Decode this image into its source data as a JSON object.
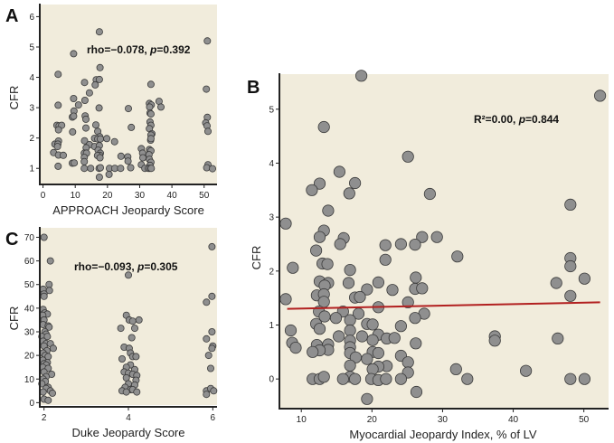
{
  "chart_data": [
    {
      "id": "A",
      "type": "scatter",
      "panel_label": "A",
      "xlabel": "APPROACH Jeopardy Score",
      "ylabel": "CFR",
      "xlim": [
        -1,
        54
      ],
      "ylim": [
        0.5,
        6.4
      ],
      "xticks": [
        0,
        10,
        20,
        30,
        40,
        50
      ],
      "yticks": [
        1,
        2,
        3,
        4,
        5,
        6
      ],
      "annotation": {
        "prefix": "rho=−0.078, ",
        "p_label": "p",
        "suffix": "=0.392"
      },
      "grid": false,
      "points": [
        [
          17.5,
          5.5
        ],
        [
          9.5,
          4.78
        ],
        [
          51,
          5.2
        ],
        [
          4.7,
          4.1
        ],
        [
          17.7,
          4.32
        ],
        [
          16.5,
          3.92
        ],
        [
          17.5,
          3.93
        ],
        [
          12.9,
          3.83
        ],
        [
          16.2,
          3.75
        ],
        [
          33.5,
          3.77
        ],
        [
          50.7,
          3.61
        ],
        [
          14.4,
          3.49
        ],
        [
          9.5,
          3.3
        ],
        [
          4.7,
          3.08
        ],
        [
          11,
          3.09
        ],
        [
          13,
          3.24
        ],
        [
          17.4,
          2.99
        ],
        [
          26.5,
          2.97
        ],
        [
          36,
          3.21
        ],
        [
          36.6,
          3.02
        ],
        [
          9.6,
          2.89
        ],
        [
          9.1,
          2.69
        ],
        [
          9.5,
          2.72
        ],
        [
          13.1,
          2.73
        ],
        [
          13.3,
          2.62
        ],
        [
          33,
          3.14
        ],
        [
          33.6,
          3.09
        ],
        [
          33.1,
          3.02
        ],
        [
          33.2,
          2.82
        ],
        [
          33.5,
          2.79
        ],
        [
          51,
          2.68
        ],
        [
          4.3,
          2.42
        ],
        [
          5,
          2.4
        ],
        [
          5.8,
          2.42
        ],
        [
          4.8,
          2.27
        ],
        [
          9.2,
          2.2
        ],
        [
          13.3,
          2.33
        ],
        [
          16.4,
          2.43
        ],
        [
          17,
          2.22
        ],
        [
          27.4,
          2.35
        ],
        [
          33.2,
          2.53
        ],
        [
          33.5,
          2.42
        ],
        [
          33,
          2.31
        ],
        [
          33.8,
          2.14
        ],
        [
          33.5,
          2.1
        ],
        [
          50.5,
          2.5
        ],
        [
          50.9,
          2.4
        ],
        [
          51.2,
          2.22
        ],
        [
          3.7,
          1.8
        ],
        [
          4.8,
          1.9
        ],
        [
          4.6,
          1.8
        ],
        [
          4.5,
          1.72
        ],
        [
          16,
          1.99
        ],
        [
          17.6,
          2.04
        ],
        [
          17,
          1.97
        ],
        [
          17.8,
          1.97
        ],
        [
          19.8,
          1.98
        ],
        [
          22.2,
          1.88
        ],
        [
          33.4,
          1.93
        ],
        [
          33.5,
          1.98
        ],
        [
          12.9,
          1.91
        ],
        [
          14.4,
          1.78
        ],
        [
          13.4,
          1.68
        ],
        [
          16,
          1.72
        ],
        [
          17.5,
          1.75
        ],
        [
          17.1,
          1.6
        ],
        [
          17.8,
          1.5
        ],
        [
          17.6,
          1.43
        ],
        [
          16.9,
          1.42
        ],
        [
          30.5,
          1.65
        ],
        [
          30.9,
          1.5
        ],
        [
          31,
          1.35
        ],
        [
          33,
          1.62
        ],
        [
          33.5,
          1.58
        ],
        [
          32.9,
          1.45
        ],
        [
          3.3,
          1.52
        ],
        [
          4.8,
          1.44
        ],
        [
          6.3,
          1.43
        ],
        [
          12.8,
          1.5
        ],
        [
          13.5,
          1.5
        ],
        [
          12.8,
          1.36
        ],
        [
          12.8,
          1.22
        ],
        [
          17.7,
          1.35
        ],
        [
          24.2,
          1.4
        ],
        [
          26.3,
          1.38
        ],
        [
          26.4,
          1.24
        ],
        [
          30.5,
          1.12
        ],
        [
          33,
          1.3
        ],
        [
          33.5,
          1.2
        ],
        [
          33.2,
          1.1
        ],
        [
          4.7,
          1.07
        ],
        [
          9.1,
          1.17
        ],
        [
          9.7,
          1.18
        ],
        [
          12.8,
          1.0
        ],
        [
          14.8,
          1.0
        ],
        [
          17.4,
          1.0
        ],
        [
          17.8,
          1.02
        ],
        [
          20.6,
          1.0
        ],
        [
          22.3,
          1.0
        ],
        [
          24.1,
          1.0
        ],
        [
          27.2,
          1.02
        ],
        [
          31.6,
          1.0
        ],
        [
          32.7,
          1.0
        ],
        [
          33.2,
          1.0
        ],
        [
          33.6,
          1.0
        ],
        [
          51.2,
          1.12
        ],
        [
          50.8,
          1.02
        ],
        [
          52.6,
          0.99
        ],
        [
          20.5,
          0.8
        ],
        [
          17.5,
          0.71
        ]
      ]
    },
    {
      "id": "B",
      "type": "scatter",
      "panel_label": "B",
      "xlabel": "Myocardial Jeopardy Index, % of LV",
      "ylabel": "CFR",
      "xlim": [
        6.9,
        53.5
      ],
      "ylim": [
        -0.55,
        5.65
      ],
      "xticks": [
        10,
        20,
        30,
        40,
        50
      ],
      "yticks": [
        0,
        1,
        2,
        3,
        4,
        5
      ],
      "annotation": {
        "prefix": "R²=0.00, ",
        "p_label": "p",
        "suffix": "=0.844"
      },
      "fit_line": {
        "x": [
          8,
          52.3
        ],
        "y": [
          1.3,
          1.42
        ]
      },
      "grid": false,
      "points": [
        [
          18.5,
          5.62
        ],
        [
          52.3,
          5.25
        ],
        [
          13.2,
          4.67
        ],
        [
          25.1,
          4.12
        ],
        [
          15.4,
          3.84
        ],
        [
          12.6,
          3.62
        ],
        [
          17.6,
          3.63
        ],
        [
          11.5,
          3.5
        ],
        [
          16.8,
          3.44
        ],
        [
          28.2,
          3.43
        ],
        [
          48.1,
          3.23
        ],
        [
          13.8,
          3.12
        ],
        [
          7.8,
          2.88
        ],
        [
          13.2,
          2.75
        ],
        [
          12.6,
          2.63
        ],
        [
          16,
          2.61
        ],
        [
          27.1,
          2.63
        ],
        [
          29.2,
          2.63
        ],
        [
          15.5,
          2.5
        ],
        [
          21.9,
          2.48
        ],
        [
          24.1,
          2.5
        ],
        [
          26.1,
          2.49
        ],
        [
          12.1,
          2.38
        ],
        [
          32.1,
          2.27
        ],
        [
          48.1,
          2.24
        ],
        [
          21.9,
          2.21
        ],
        [
          13,
          2.14
        ],
        [
          13.7,
          2.13
        ],
        [
          8.8,
          2.06
        ],
        [
          48.1,
          2.09
        ],
        [
          16.9,
          2.02
        ],
        [
          26.2,
          1.88
        ],
        [
          50.1,
          1.86
        ],
        [
          12.6,
          1.81
        ],
        [
          13.8,
          1.78
        ],
        [
          16.7,
          1.78
        ],
        [
          20.9,
          1.79
        ],
        [
          46.1,
          1.78
        ],
        [
          13.3,
          1.73
        ],
        [
          26.1,
          1.67
        ],
        [
          27.1,
          1.68
        ],
        [
          19.3,
          1.66
        ],
        [
          22.9,
          1.65
        ],
        [
          12.2,
          1.55
        ],
        [
          13.2,
          1.57
        ],
        [
          48.1,
          1.54
        ],
        [
          17.6,
          1.51
        ],
        [
          18.3,
          1.52
        ],
        [
          7.8,
          1.48
        ],
        [
          13.2,
          1.43
        ],
        [
          25.1,
          1.42
        ],
        [
          20.9,
          1.33
        ],
        [
          12.5,
          1.25
        ],
        [
          15.9,
          1.25
        ],
        [
          18.1,
          1.21
        ],
        [
          27.4,
          1.21
        ],
        [
          13.3,
          1.16
        ],
        [
          14.9,
          1.13
        ],
        [
          26.1,
          1.13
        ],
        [
          16.9,
          1.09
        ],
        [
          12.1,
          1.02
        ],
        [
          19.3,
          1.02
        ],
        [
          20.1,
          1.01
        ],
        [
          24.1,
          0.98
        ],
        [
          12.6,
          0.93
        ],
        [
          16.9,
          0.9
        ],
        [
          8.5,
          0.9
        ],
        [
          20.9,
          0.82
        ],
        [
          15.3,
          0.79
        ],
        [
          18.6,
          0.79
        ],
        [
          22.1,
          0.75
        ],
        [
          23.2,
          0.76
        ],
        [
          37.4,
          0.79
        ],
        [
          46.3,
          0.75
        ],
        [
          20.1,
          0.72
        ],
        [
          16.9,
          0.71
        ],
        [
          37.4,
          0.71
        ],
        [
          8.7,
          0.67
        ],
        [
          26.2,
          0.66
        ],
        [
          13.8,
          0.64
        ],
        [
          12.2,
          0.63
        ],
        [
          9.2,
          0.58
        ],
        [
          16.9,
          0.59
        ],
        [
          13.8,
          0.54
        ],
        [
          12.6,
          0.53
        ],
        [
          11.6,
          0.5
        ],
        [
          20.1,
          0.5
        ],
        [
          20.9,
          0.48
        ],
        [
          16.9,
          0.48
        ],
        [
          17.7,
          0.4
        ],
        [
          19.3,
          0.37
        ],
        [
          24.1,
          0.43
        ],
        [
          25.1,
          0.31
        ],
        [
          16.9,
          0.25
        ],
        [
          22.1,
          0.24
        ],
        [
          20.9,
          0.23
        ],
        [
          20.1,
          0.18
        ],
        [
          31.9,
          0.18
        ],
        [
          25.1,
          0.12
        ],
        [
          41.8,
          0.15
        ],
        [
          11.6,
          0.0
        ],
        [
          12.6,
          0.0
        ],
        [
          13.2,
          0.04
        ],
        [
          16.9,
          0.04
        ],
        [
          15.9,
          0.0
        ],
        [
          17.6,
          0.0
        ],
        [
          19.9,
          0.0
        ],
        [
          20.9,
          -0.02
        ],
        [
          22,
          0.0
        ],
        [
          24.1,
          0.0
        ],
        [
          33.5,
          0.0
        ],
        [
          48.1,
          0.0
        ],
        [
          50.1,
          0.0
        ],
        [
          26.3,
          -0.24
        ],
        [
          19.3,
          -0.37
        ]
      ]
    },
    {
      "id": "C",
      "type": "scatter",
      "panel_label": "C",
      "xlabel": "Duke Jeopardy Score",
      "ylabel": "CFR",
      "xlim": [
        1.9,
        6.1
      ],
      "ylim": [
        -1,
        74
      ],
      "xticks": [
        2,
        4,
        6
      ],
      "yticks": [
        0,
        10,
        20,
        30,
        40,
        50,
        60,
        70
      ],
      "annotation": {
        "prefix": "rho=−0.093, ",
        "p_label": "p",
        "suffix": "=0.305"
      },
      "grid": false,
      "points": [
        [
          2,
          70
        ],
        [
          2.15,
          60
        ],
        [
          2.12,
          50
        ],
        [
          1.98,
          48
        ],
        [
          2.13,
          47.5
        ],
        [
          2,
          46
        ],
        [
          2,
          45
        ],
        [
          1.98,
          39.5
        ],
        [
          2.02,
          38
        ],
        [
          2.08,
          37.5
        ],
        [
          1.97,
          37
        ],
        [
          2,
          35
        ],
        [
          1.98,
          33
        ],
        [
          2.1,
          32.5
        ],
        [
          2.12,
          32
        ],
        [
          2.02,
          30
        ],
        [
          2.05,
          29
        ],
        [
          1.95,
          28
        ],
        [
          2.08,
          28
        ],
        [
          1.98,
          26
        ],
        [
          2.05,
          25
        ],
        [
          2.15,
          25
        ],
        [
          2.0,
          24
        ],
        [
          2.22,
          23
        ],
        [
          2.07,
          22
        ],
        [
          1.98,
          21
        ],
        [
          2.03,
          20
        ],
        [
          2.1,
          19.5
        ],
        [
          1.97,
          18
        ],
        [
          2.08,
          17
        ],
        [
          2,
          16.5
        ],
        [
          2.05,
          16
        ],
        [
          1.97,
          15
        ],
        [
          2.1,
          14.5
        ],
        [
          2,
          13
        ],
        [
          2.18,
          12
        ],
        [
          2.05,
          11
        ],
        [
          1.98,
          10
        ],
        [
          2.03,
          9
        ],
        [
          1.95,
          8
        ],
        [
          2.1,
          6.5
        ],
        [
          2.05,
          6
        ],
        [
          2.15,
          5
        ],
        [
          1.98,
          4.5
        ],
        [
          2.2,
          4
        ],
        [
          2.0,
          1.5
        ],
        [
          2.1,
          1
        ],
        [
          4,
          54
        ],
        [
          3.95,
          37
        ],
        [
          4.02,
          35
        ],
        [
          4.25,
          35
        ],
        [
          4.1,
          34.5
        ],
        [
          3.82,
          31.5
        ],
        [
          4.15,
          31.5
        ],
        [
          4.08,
          27.5
        ],
        [
          3.9,
          23.5
        ],
        [
          4.02,
          23
        ],
        [
          4.05,
          21
        ],
        [
          4.1,
          19.5
        ],
        [
          4.18,
          19.5
        ],
        [
          3.85,
          18.5
        ],
        [
          4.05,
          16
        ],
        [
          3.95,
          15
        ],
        [
          4.15,
          14
        ],
        [
          3.9,
          13
        ],
        [
          4.0,
          12.5
        ],
        [
          4.1,
          12
        ],
        [
          4.2,
          11.5
        ],
        [
          3.95,
          10.5
        ],
        [
          4.18,
          9.5
        ],
        [
          4.0,
          8
        ],
        [
          4.15,
          7.5
        ],
        [
          3.92,
          6.5
        ],
        [
          4.05,
          5.5
        ],
        [
          3.85,
          5
        ],
        [
          3.95,
          4.5
        ],
        [
          4.1,
          5.5
        ],
        [
          4.2,
          4.5
        ],
        [
          5.98,
          66
        ],
        [
          5.98,
          45
        ],
        [
          5.85,
          42.5
        ],
        [
          5.98,
          30
        ],
        [
          5.85,
          27
        ],
        [
          6.0,
          24
        ],
        [
          5.98,
          23
        ],
        [
          5.9,
          20
        ],
        [
          5.95,
          14.5
        ],
        [
          5.85,
          5
        ],
        [
          5.95,
          6
        ],
        [
          6.02,
          5
        ],
        [
          5.85,
          3.5
        ]
      ]
    }
  ]
}
